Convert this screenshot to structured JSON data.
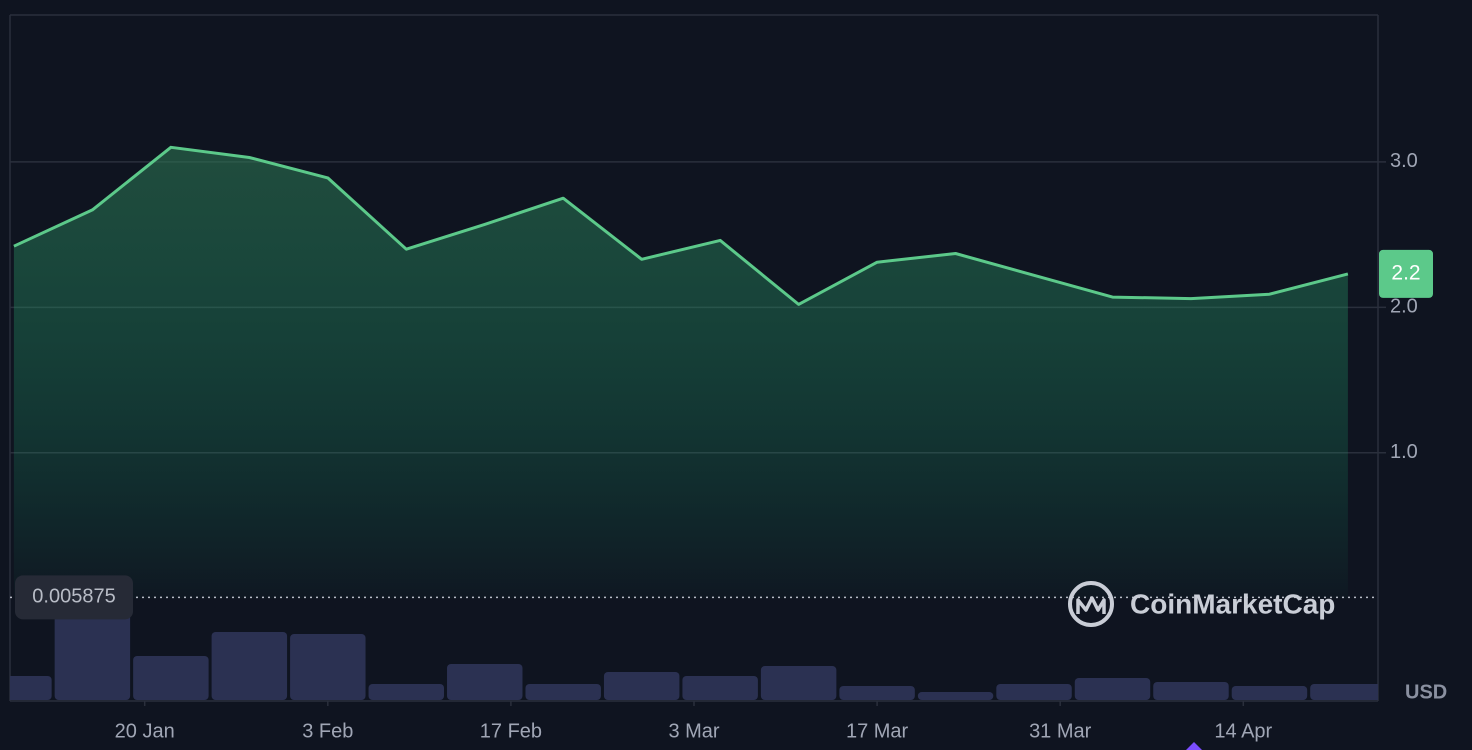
{
  "chart_data": {
    "type": "line",
    "x": [
      10,
      16,
      22,
      28,
      34,
      40,
      46,
      52,
      58,
      64,
      70,
      76,
      82,
      88,
      94,
      100,
      106,
      112
    ],
    "xlim": [
      9.7,
      114.3
    ],
    "xticks": [
      {
        "value": 20,
        "label": "20 Jan"
      },
      {
        "value": 34,
        "label": "3 Feb"
      },
      {
        "value": 48,
        "label": "17 Feb"
      },
      {
        "value": 62,
        "label": "3 Mar"
      },
      {
        "value": 76,
        "label": "17 Mar"
      },
      {
        "value": 90,
        "label": "31 Mar"
      },
      {
        "value": 104,
        "label": "14 Apr"
      }
    ],
    "ylim": [
      -0.7,
      4.01
    ],
    "yticks": [
      {
        "value": 1,
        "label": "1.0"
      },
      {
        "value": 2,
        "label": "2.0"
      },
      {
        "value": 3,
        "label": "3.0"
      }
    ],
    "y2lim": [
      0,
      100
    ],
    "grid": true,
    "series": [
      {
        "color": "#5cc98a",
        "values": [
          2.42,
          2.67,
          3.1,
          3.03,
          2.89,
          2.4,
          2.57,
          2.75,
          2.33,
          2.46,
          2.02,
          2.31,
          2.37,
          2.22,
          2.07,
          2.06,
          2.09,
          2.23
        ]
      },
      {
        "type": "bar",
        "axis": "y2",
        "color": "#2b3152",
        "values": [
          24,
          90,
          44,
          68,
          66,
          16,
          36,
          16,
          28,
          24,
          34,
          14,
          8,
          16,
          22,
          18,
          14,
          16
        ]
      }
    ],
    "reference_line": 0.005875,
    "price_tag": "2.2",
    "unit": "USD",
    "watermark": "CoinMarketCap"
  }
}
